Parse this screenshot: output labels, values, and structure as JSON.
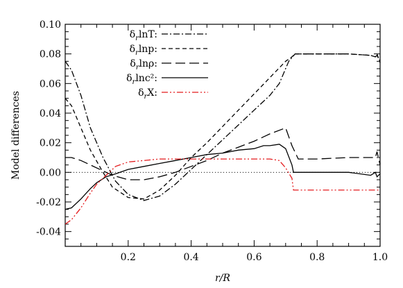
{
  "chart_data": {
    "type": "line",
    "xlabel": "r/R",
    "ylabel": "Model differences",
    "xlim": [
      0.0,
      1.0
    ],
    "ylim": [
      -0.05,
      0.1
    ],
    "xticks": [
      0.2,
      0.4,
      0.6,
      0.8,
      1.0
    ],
    "xtick_labels": [
      "0.2",
      "0.4",
      "0.6",
      "0.8",
      "1.0"
    ],
    "yticks": [
      -0.04,
      -0.02,
      0.0,
      0.02,
      0.04,
      0.06,
      0.08,
      0.1
    ],
    "ytick_labels": [
      "-0.04",
      "-0.02",
      "0.00",
      "0.02",
      "0.04",
      "0.06",
      "0.08",
      "0.10"
    ],
    "grid": false,
    "legend_position": "top-left",
    "reference_line": {
      "y": 0.0,
      "style": "dotted"
    },
    "series": [
      {
        "name": "δ_r lnT:",
        "dash": "dash-dot",
        "color": "#000000",
        "x": [
          0.0,
          0.02,
          0.05,
          0.08,
          0.12,
          0.16,
          0.2,
          0.25,
          0.3,
          0.35,
          0.4,
          0.45,
          0.5,
          0.55,
          0.6,
          0.65,
          0.68,
          0.71,
          0.73,
          0.8,
          0.9,
          0.97,
          0.985,
          0.99,
          1.0
        ],
        "y": [
          0.075,
          0.069,
          0.052,
          0.03,
          0.01,
          -0.006,
          -0.015,
          -0.019,
          -0.016,
          -0.008,
          0.002,
          0.012,
          0.022,
          0.032,
          0.042,
          0.052,
          0.06,
          0.075,
          0.08,
          0.08,
          0.08,
          0.079,
          0.078,
          0.079,
          0.075
        ]
      },
      {
        "name": "δ_r lnp:",
        "dash": "short-dash",
        "color": "#000000",
        "x": [
          0.0,
          0.02,
          0.05,
          0.08,
          0.12,
          0.15,
          0.2,
          0.25,
          0.3,
          0.35,
          0.4,
          0.45,
          0.5,
          0.55,
          0.6,
          0.65,
          0.7,
          0.72,
          0.73,
          0.8,
          0.9,
          0.97,
          0.985,
          0.99,
          1.0
        ],
        "y": [
          0.05,
          0.045,
          0.03,
          0.015,
          0.0,
          -0.01,
          -0.017,
          -0.018,
          -0.012,
          -0.002,
          0.01,
          0.02,
          0.031,
          0.042,
          0.053,
          0.064,
          0.075,
          0.078,
          0.08,
          0.08,
          0.08,
          0.079,
          0.078,
          0.08,
          0.074
        ]
      },
      {
        "name": "δ_r lnρ:",
        "dash": "long-dash",
        "color": "#000000",
        "x": [
          0.0,
          0.02,
          0.05,
          0.08,
          0.12,
          0.15,
          0.2,
          0.25,
          0.3,
          0.35,
          0.4,
          0.45,
          0.5,
          0.55,
          0.6,
          0.65,
          0.7,
          0.72,
          0.74,
          0.8,
          0.9,
          0.97,
          0.985,
          0.99,
          1.0
        ],
        "y": [
          0.01,
          0.01,
          0.008,
          0.005,
          0.001,
          -0.002,
          -0.005,
          -0.005,
          -0.003,
          0.0,
          0.004,
          0.008,
          0.013,
          0.017,
          0.021,
          0.026,
          0.03,
          0.018,
          0.009,
          0.009,
          0.01,
          0.01,
          0.01,
          0.014,
          0.005
        ]
      },
      {
        "name": "δ_r lnc²:",
        "dash": "solid",
        "color": "#000000",
        "x": [
          0.0,
          0.02,
          0.05,
          0.08,
          0.1,
          0.13,
          0.16,
          0.2,
          0.25,
          0.3,
          0.35,
          0.4,
          0.45,
          0.5,
          0.55,
          0.6,
          0.63,
          0.65,
          0.68,
          0.7,
          0.72,
          0.725,
          0.8,
          0.9,
          0.97,
          0.985,
          0.99,
          1.0
        ],
        "y": [
          -0.025,
          -0.024,
          -0.018,
          -0.011,
          -0.007,
          -0.003,
          -0.001,
          0.002,
          0.004,
          0.006,
          0.008,
          0.01,
          0.012,
          0.013,
          0.015,
          0.016,
          0.018,
          0.018,
          0.019,
          0.016,
          0.005,
          0.0,
          0.0,
          0.0,
          -0.002,
          0.0,
          -0.003,
          -0.001
        ]
      },
      {
        "name": "δ_r X:",
        "dash": "dash-dot-dot",
        "color": "#e41a1c",
        "x": [
          0.0,
          0.02,
          0.05,
          0.08,
          0.1,
          0.13,
          0.16,
          0.2,
          0.25,
          0.3,
          0.35,
          0.4,
          0.45,
          0.5,
          0.55,
          0.6,
          0.65,
          0.68,
          0.7,
          0.72,
          0.725,
          0.8,
          0.9,
          0.97,
          0.98,
          0.99,
          1.0
        ],
        "y": [
          -0.035,
          -0.032,
          -0.024,
          -0.014,
          -0.008,
          -0.002,
          0.004,
          0.007,
          0.008,
          0.009,
          0.009,
          0.009,
          0.009,
          0.009,
          0.009,
          0.009,
          0.009,
          0.008,
          0.003,
          -0.004,
          -0.012,
          -0.012,
          -0.012,
          -0.012,
          -0.012,
          -0.012,
          -0.012
        ]
      }
    ]
  }
}
